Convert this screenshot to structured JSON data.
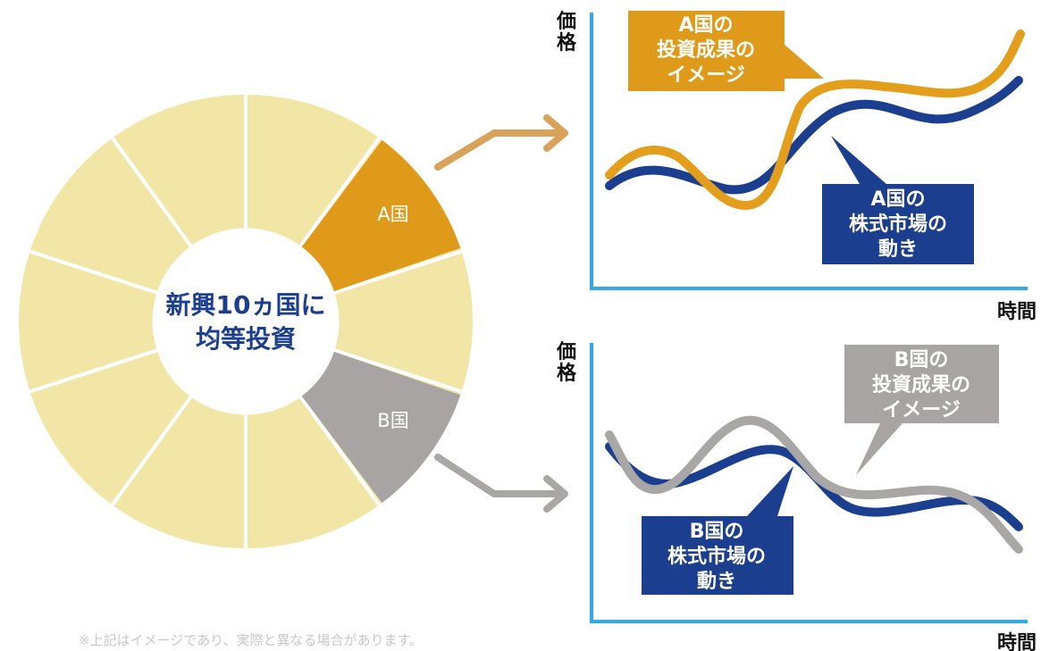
{
  "pie": {
    "center_text": [
      "新興10ヵ国に",
      "均等投資"
    ],
    "segment_count": 10,
    "segment_a_label": "A国",
    "segment_b_label": "B国"
  },
  "chart_a": {
    "y_axis_label": "価格",
    "x_axis_label": "時間",
    "investment_callout": [
      "A国の",
      "投資成果の",
      "イメージ"
    ],
    "market_callout": [
      "A国の",
      "株式市場の",
      "動き"
    ]
  },
  "chart_b": {
    "y_axis_label": "価格",
    "x_axis_label": "時間",
    "investment_callout": [
      "B国の",
      "投資成果の",
      "イメージ"
    ],
    "market_callout": [
      "B国の",
      "株式市場の",
      "動き"
    ]
  },
  "colors": {
    "pie_fill": "#f1e6a6",
    "segment_a": "#e09a1a",
    "segment_b": "#a7a4a3",
    "navy": "#1b3f8e",
    "orange_line": "#e39e1c",
    "gray_line": "#a9a7a6",
    "axis": "#35a9e4"
  },
  "footnote": "※上記はイメージであり、実際と異なる場合があります。"
}
